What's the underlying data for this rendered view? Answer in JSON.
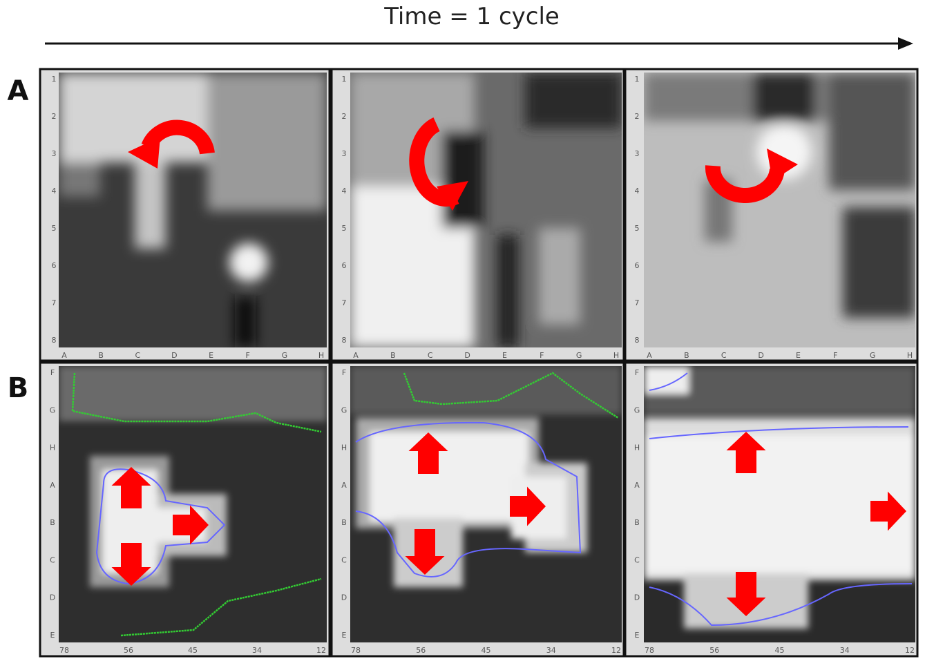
{
  "header": {
    "title": "Time = 1 cycle"
  },
  "rows": [
    {
      "label": "A",
      "x_labels": [
        "A",
        "B",
        "C",
        "D",
        "E",
        "F",
        "G",
        "H"
      ],
      "y_labels": [
        "1",
        "2",
        "3",
        "4",
        "5",
        "6",
        "7",
        "8"
      ]
    },
    {
      "label": "B",
      "x_labels": [
        "78",
        "56",
        "45",
        "34",
        "12"
      ],
      "y_labels": [
        "F",
        "G",
        "H",
        "A",
        "B",
        "C",
        "D",
        "E"
      ]
    }
  ]
}
